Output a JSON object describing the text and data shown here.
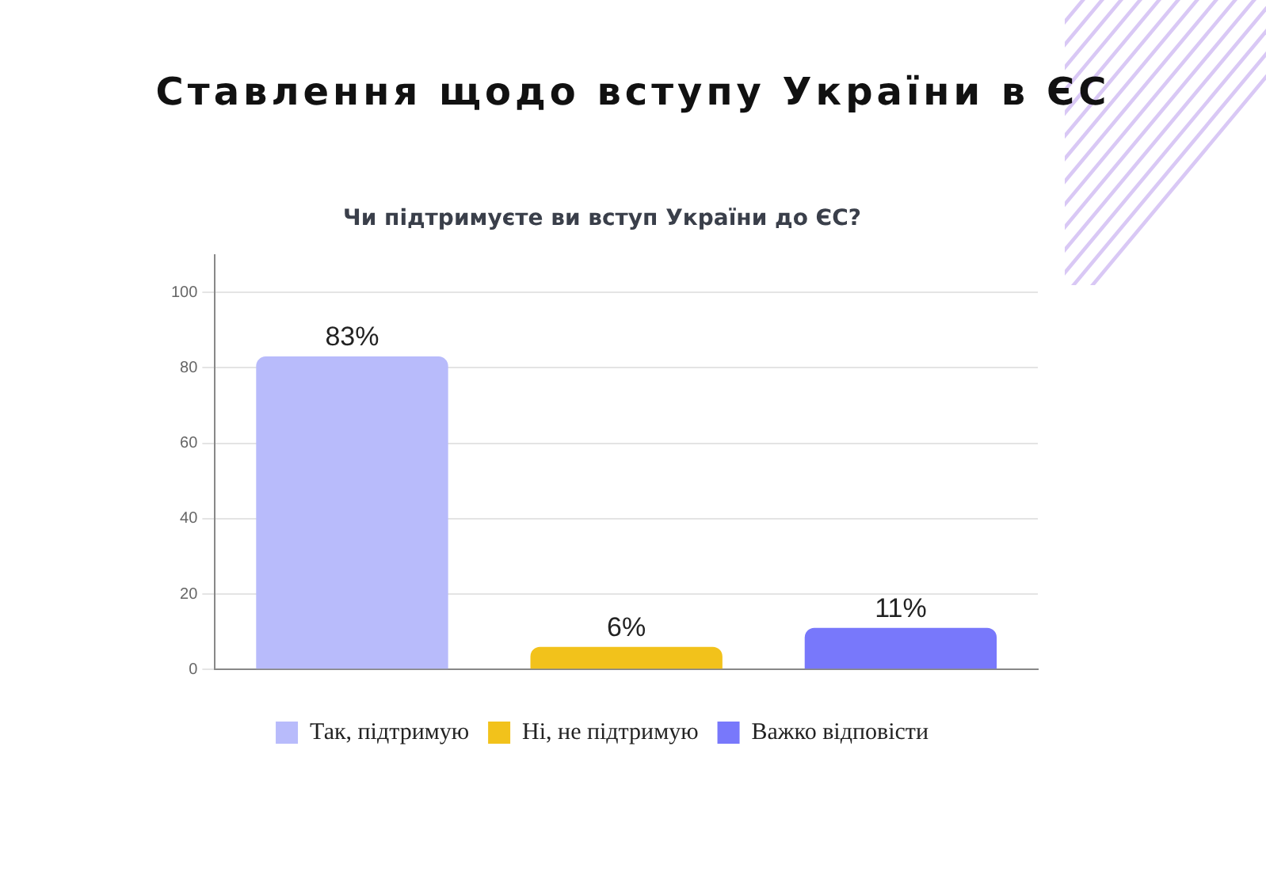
{
  "chart_data": {
    "type": "bar",
    "title": "Ставлення щодо вступу України в ЄС",
    "subtitle": "Чи підтримуєте ви вступ України до ЄС?",
    "categories": [
      null,
      null,
      null
    ],
    "series": [
      {
        "name": "Так, підтримую",
        "color": "#b8bbfb",
        "values": [
          83,
          null,
          null
        ],
        "value_labels": [
          "83%",
          null,
          null
        ]
      },
      {
        "name": "Ні, не підтримую",
        "color": "#f2c21b",
        "values": [
          null,
          6,
          null
        ],
        "value_labels": [
          null,
          "6%",
          null
        ]
      },
      {
        "name": "Важко відповісти",
        "color": "#7878fb",
        "values": [
          null,
          null,
          11
        ],
        "value_labels": [
          null,
          null,
          "11%"
        ]
      }
    ],
    "ylim": [
      0,
      110
    ],
    "yticks": [
      0,
      20,
      40,
      60,
      80,
      100
    ],
    "grid": "y",
    "legend": "bottom"
  }
}
